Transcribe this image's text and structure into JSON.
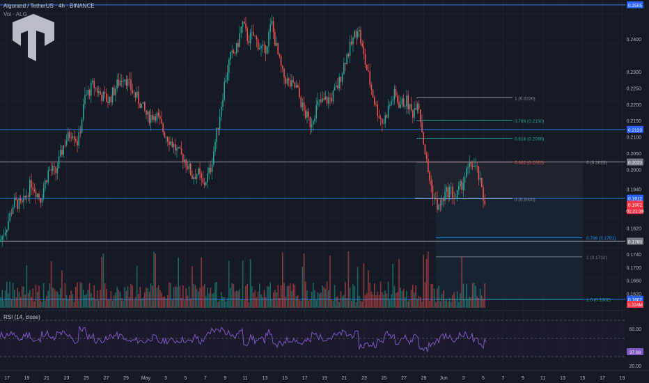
{
  "header": {
    "title": "Algorand / TetherUS · 4h · BINANCE",
    "vol_label": "Vol · ALG"
  },
  "rsi_panel": {
    "title": "RSI (14, close)",
    "value_label": "37.08",
    "ticks": [
      "60.00",
      "20.00"
    ]
  },
  "price_axis": {
    "ticks": [
      "0.2400",
      "0.2300",
      "0.2250",
      "0.2200",
      "0.2150",
      "0.2100",
      "0.2050",
      "0.2000",
      "0.1940",
      "0.1820",
      "0.1740",
      "0.1700",
      "0.1660",
      "0.1620"
    ],
    "badges": [
      {
        "label": "0.2505",
        "color": "#2962ff"
      },
      {
        "label": "0.2123",
        "color": "#2962ff"
      },
      {
        "label": "0.2023",
        "color": "#787b86"
      },
      {
        "label": "0.1912",
        "color": "#2962ff"
      },
      {
        "label": "0.1902",
        "color": "#f23645"
      },
      {
        "label": "01:21:39",
        "color": "#f23645"
      },
      {
        "label": "0.1780",
        "color": "#787b86"
      },
      {
        "label": "0.1602",
        "color": "#2962ff"
      },
      {
        "label": "1.224M",
        "color": "#f23645"
      }
    ]
  },
  "time_axis": {
    "labels": [
      "17",
      "19",
      "21",
      "23",
      "25",
      "27",
      "29",
      "May",
      "3",
      "5",
      "7",
      "9",
      "11",
      "13",
      "15",
      "17",
      "19",
      "21",
      "23",
      "25",
      "27",
      "29",
      "Jun",
      "3",
      "5",
      "7",
      "9",
      "11",
      "13",
      "15",
      "17",
      "19"
    ]
  },
  "chart_data": {
    "type": "candlestick",
    "title": "Algorand / TetherUS · 4h · BINANCE",
    "ylim": [
      0.158,
      0.252
    ],
    "horizontal_levels": [
      0.2505,
      0.2123,
      0.2023,
      0.1912,
      0.178,
      0.1602
    ],
    "fib_upper": [
      {
        "ratio": "1",
        "value": 0.222,
        "label": "1 (0.2220)"
      },
      {
        "ratio": "0.786",
        "value": 0.215,
        "label": "0.786 (0.2150)"
      },
      {
        "ratio": "0.618",
        "value": 0.2096,
        "label": "0.618 (0.2096)"
      },
      {
        "ratio": "0.382",
        "value": 0.2023,
        "label": "0.382 (0.2023)"
      },
      {
        "ratio": "0",
        "value": 0.2023,
        "label": "0 (0.2023)"
      },
      {
        "ratio": "0",
        "value": 0.191,
        "label": "0 (0.1910)"
      }
    ],
    "fib_lower": [
      {
        "ratio": "0.786",
        "value": 0.1791,
        "label": "0.786 (0.1791)"
      },
      {
        "ratio": "1",
        "value": 0.1732,
        "label": "1 (0.1732)"
      },
      {
        "ratio": "1.5",
        "value": 0.1602,
        "label": "1.5 (0.1602)"
      }
    ],
    "price_path": [
      [
        0,
        0.178
      ],
      [
        10,
        0.183
      ],
      [
        20,
        0.19
      ],
      [
        32,
        0.189
      ],
      [
        45,
        0.196
      ],
      [
        58,
        0.191
      ],
      [
        70,
        0.2
      ],
      [
        80,
        0.199
      ],
      [
        92,
        0.208
      ],
      [
        104,
        0.212
      ],
      [
        112,
        0.208
      ],
      [
        122,
        0.222
      ],
      [
        134,
        0.226
      ],
      [
        144,
        0.223
      ],
      [
        156,
        0.221
      ],
      [
        168,
        0.226
      ],
      [
        178,
        0.229
      ],
      [
        190,
        0.224
      ],
      [
        200,
        0.221
      ],
      [
        212,
        0.216
      ],
      [
        224,
        0.217
      ],
      [
        234,
        0.212
      ],
      [
        244,
        0.209
      ],
      [
        256,
        0.205
      ],
      [
        266,
        0.203
      ],
      [
        276,
        0.198
      ],
      [
        284,
        0.199
      ],
      [
        292,
        0.195
      ],
      [
        302,
        0.2
      ],
      [
        312,
        0.212
      ],
      [
        322,
        0.226
      ],
      [
        330,
        0.234
      ],
      [
        340,
        0.237
      ],
      [
        348,
        0.245
      ],
      [
        356,
        0.24
      ],
      [
        364,
        0.241
      ],
      [
        372,
        0.238
      ],
      [
        380,
        0.236
      ],
      [
        390,
        0.245
      ],
      [
        398,
        0.236
      ],
      [
        406,
        0.229
      ],
      [
        416,
        0.226
      ],
      [
        426,
        0.225
      ],
      [
        436,
        0.218
      ],
      [
        446,
        0.214
      ],
      [
        456,
        0.22
      ],
      [
        466,
        0.221
      ],
      [
        476,
        0.222
      ],
      [
        486,
        0.226
      ],
      [
        496,
        0.234
      ],
      [
        504,
        0.238
      ],
      [
        514,
        0.244
      ],
      [
        522,
        0.235
      ],
      [
        532,
        0.226
      ],
      [
        540,
        0.219
      ],
      [
        550,
        0.214
      ],
      [
        558,
        0.219
      ],
      [
        566,
        0.223
      ],
      [
        574,
        0.22
      ],
      [
        584,
        0.221
      ],
      [
        592,
        0.217
      ],
      [
        600,
        0.222
      ],
      [
        606,
        0.212
      ],
      [
        614,
        0.2
      ],
      [
        622,
        0.192
      ],
      [
        630,
        0.188
      ],
      [
        638,
        0.192
      ],
      [
        646,
        0.194
      ],
      [
        654,
        0.191
      ],
      [
        662,
        0.195
      ],
      [
        670,
        0.199
      ],
      [
        678,
        0.202
      ],
      [
        686,
        0.199
      ],
      [
        694,
        0.191
      ],
      [
        698,
        0.1902
      ]
    ],
    "rsi_levels": [
      70,
      50,
      30
    ],
    "rsi_last": 37.08
  },
  "colors": {
    "up": "#26a69a",
    "down": "#ef5350",
    "level": "#3179f5",
    "grey_level": "#9598a1",
    "fib_green": "#26a69a",
    "rsi_line": "#7e57c2",
    "background": "#161a25"
  }
}
